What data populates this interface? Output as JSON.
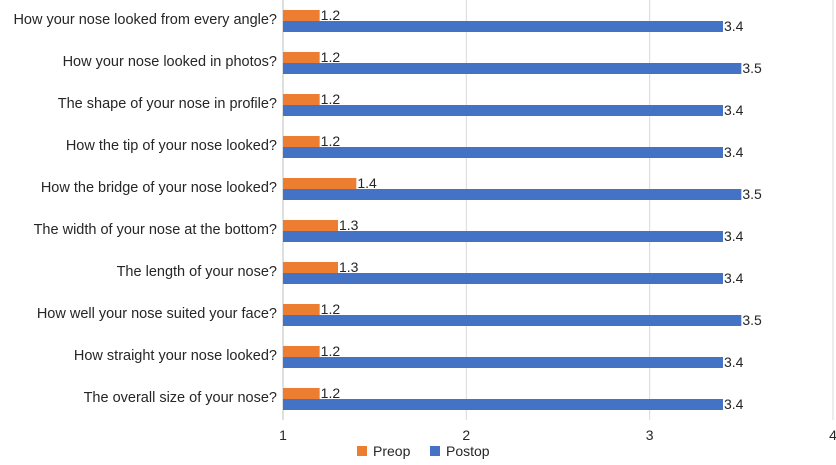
{
  "chart_data": {
    "type": "bar",
    "orientation": "horizontal",
    "categories": [
      "How your nose looked from every angle?",
      "How your nose looked in photos?",
      "The shape of your nose in profile?",
      "How the tip of your nose looked?",
      "How the bridge of your nose looked?",
      "The width of your nose at the bottom?",
      "The length of your nose?",
      "How well your nose suited your face?",
      "How straight your nose looked?",
      "The overall size of your nose?"
    ],
    "series": [
      {
        "name": "Preop",
        "color": "#ED7D31",
        "values": [
          1.2,
          1.2,
          1.2,
          1.2,
          1.4,
          1.3,
          1.3,
          1.2,
          1.2,
          1.2
        ],
        "labels": [
          "1.2",
          "1.2",
          "1.2",
          "1.2",
          "1.4",
          "1.3",
          "1.3",
          "1.2",
          "1.2",
          "1.2"
        ]
      },
      {
        "name": "Postop",
        "color": "#4472C4",
        "values": [
          3.4,
          3.5,
          3.4,
          3.4,
          3.5,
          3.4,
          3.4,
          3.5,
          3.4,
          3.4
        ],
        "labels": [
          "3.4",
          "3.5",
          "3.4",
          "3.4",
          "3.5",
          "3.4",
          "3.4",
          "3.5",
          "3.4",
          "3.4"
        ]
      }
    ],
    "xlim": [
      1,
      4
    ],
    "xticks": [
      "1",
      "2",
      "3",
      "4"
    ],
    "grid": true,
    "legend_position": "bottom",
    "title": "",
    "xlabel": "",
    "ylabel": ""
  }
}
